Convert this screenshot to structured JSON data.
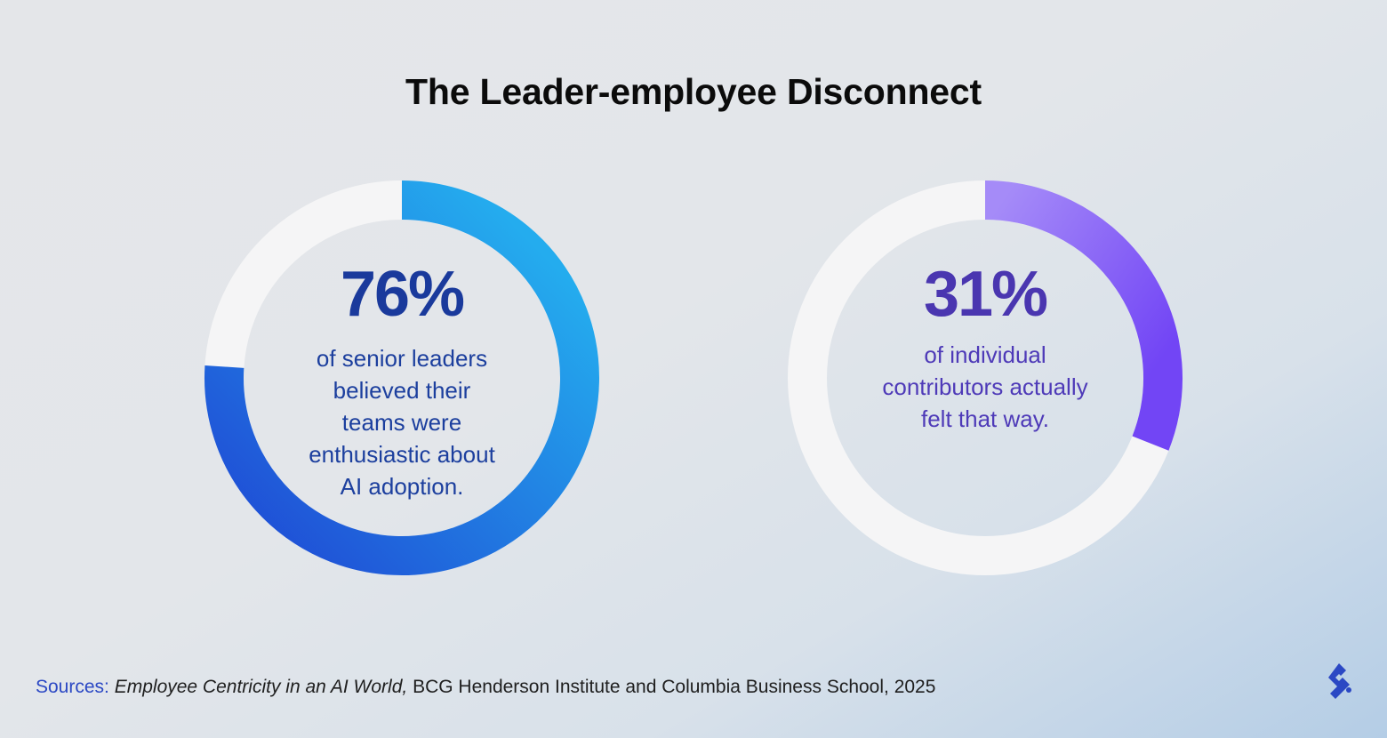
{
  "colors": {
    "track": "#f5f5f6",
    "left_arc_start": "#24acee",
    "left_arc_end": "#1f4fd6",
    "left_text": "#1c3f9e",
    "left_pct": "#1a3a9c",
    "right_arc_start": "#a58bf8",
    "right_arc_end": "#7245f5",
    "right_text": "#4e3ab8",
    "right_pct": "#4a36b0",
    "sources_lead": "#2b48c4",
    "logo": "#2b48c4"
  },
  "title": "The Leader-employee Disconnect",
  "stats": [
    {
      "percent_label": "76%",
      "caption_lines": [
        "of senior leaders",
        "believed their",
        "teams were",
        "enthusiastic about",
        "AI adoption."
      ]
    },
    {
      "percent_label": "31%",
      "caption_lines": [
        "of individual",
        "contributors actually",
        "felt that way."
      ]
    }
  ],
  "sources": {
    "lead": "Sources:",
    "title": "Employee Centricity in an AI World,",
    "rest": "BCG Henderson Institute and Columbia Business School, 2025"
  },
  "logo_icon": "toptal-logo-icon",
  "chart_data": [
    {
      "type": "pie",
      "style": "donut",
      "value": 76,
      "remainder": 24,
      "unit": "%",
      "label": "76%"
    },
    {
      "type": "pie",
      "style": "donut",
      "value": 31,
      "remainder": 69,
      "unit": "%",
      "label": "31%"
    }
  ]
}
